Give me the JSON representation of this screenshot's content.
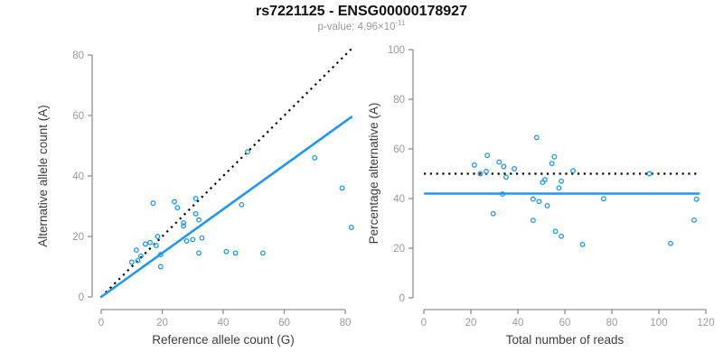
{
  "header": {
    "title": "rs7221125 - ENSG00000178927",
    "p_value_label": "p-value: ",
    "p_value_base": "4.96×10",
    "p_value_exponent": "-11"
  },
  "colors": {
    "accent_blue": "#2196F3",
    "axis_line": "#8F8F8F",
    "tick_label": "#9A9A9A",
    "axis_label": "#3D3D3D",
    "title": "#111111",
    "subtitle": "#9A9A9A",
    "dotted_line": "#000000",
    "background": "#FFFFFF"
  },
  "chart_data": [
    {
      "id": "allele-counts-scatter",
      "type": "scatter",
      "title": "",
      "xlabel": "Reference allele count (G)",
      "ylabel": "Alternative allele count (A)",
      "xlim": [
        0,
        82
      ],
      "ylim": [
        0,
        82
      ],
      "xticks": [
        0,
        20,
        40,
        60,
        80
      ],
      "yticks": [
        0,
        20,
        40,
        60,
        80
      ],
      "grid": false,
      "legend": "none",
      "marker": "open-circle",
      "points": [
        [
          10,
          11.5
        ],
        [
          11.5,
          15.5
        ],
        [
          12,
          12
        ],
        [
          13,
          13.5
        ],
        [
          14.5,
          17.5
        ],
        [
          16,
          18
        ],
        [
          18,
          17
        ],
        [
          17,
          31
        ],
        [
          18.5,
          20
        ],
        [
          19.5,
          14
        ],
        [
          19.5,
          10
        ],
        [
          24,
          31.5
        ],
        [
          25,
          29.5
        ],
        [
          27,
          24.5
        ],
        [
          27,
          23.5
        ],
        [
          28,
          18.5
        ],
        [
          30,
          19
        ],
        [
          31,
          32.5
        ],
        [
          31,
          27.5
        ],
        [
          32,
          25.5
        ],
        [
          32,
          14.5
        ],
        [
          33,
          19.5
        ],
        [
          41,
          15
        ],
        [
          44,
          14.5
        ],
        [
          46,
          30.5
        ],
        [
          48,
          48
        ],
        [
          53,
          14.5
        ],
        [
          70,
          46
        ],
        [
          79,
          36
        ],
        [
          82,
          23
        ]
      ],
      "lines": [
        {
          "name": "identity-line",
          "style": "dotted",
          "color_key": "dotted_line",
          "x1": 0,
          "y1": 0,
          "x2": 82,
          "y2": 82
        },
        {
          "name": "regression-line",
          "style": "solid",
          "color_key": "accent_blue",
          "x1": 0,
          "y1": 0,
          "x2": 82,
          "y2": 59.5
        }
      ]
    },
    {
      "id": "percentage-alternative-scatter",
      "type": "scatter",
      "title": "",
      "xlabel": "Total number of reads",
      "ylabel": "Percentage alternative (A)",
      "xlim": [
        0,
        120
      ],
      "ylim": [
        0,
        100
      ],
      "xticks": [
        0,
        20,
        40,
        60,
        80,
        100,
        120
      ],
      "yticks": [
        0,
        20,
        40,
        60,
        80,
        100
      ],
      "grid": false,
      "legend": "none",
      "marker": "open-circle",
      "points": [
        [
          21.5,
          53.5
        ],
        [
          27,
          57.4
        ],
        [
          24,
          50.0
        ],
        [
          26.5,
          50.9
        ],
        [
          32,
          54.7
        ],
        [
          34,
          52.9
        ],
        [
          35,
          48.6
        ],
        [
          48,
          64.6
        ],
        [
          38.5,
          52.0
        ],
        [
          33.5,
          41.8
        ],
        [
          29.5,
          33.9
        ],
        [
          55.5,
          56.8
        ],
        [
          54.5,
          54.1
        ],
        [
          51.5,
          47.6
        ],
        [
          50.5,
          46.5
        ],
        [
          46.5,
          39.8
        ],
        [
          49,
          38.8
        ],
        [
          63.5,
          51.2
        ],
        [
          58.5,
          47.0
        ],
        [
          57.5,
          44.3
        ],
        [
          46.5,
          31.2
        ],
        [
          52.5,
          37.1
        ],
        [
          56,
          26.8
        ],
        [
          58.5,
          24.8
        ],
        [
          76.5,
          39.9
        ],
        [
          96,
          50.0
        ],
        [
          67.5,
          21.5
        ],
        [
          116,
          39.7
        ],
        [
          115,
          31.3
        ],
        [
          105,
          21.9
        ]
      ],
      "lines": [
        {
          "name": "expected-50-percent-line",
          "style": "dotted",
          "color_key": "dotted_line",
          "x1": 0,
          "y1": 50,
          "x2": 117,
          "y2": 50
        },
        {
          "name": "fitted-percentage-line",
          "style": "solid",
          "color_key": "accent_blue",
          "x1": 0.5,
          "y1": 42,
          "x2": 117,
          "y2": 42
        }
      ]
    }
  ]
}
